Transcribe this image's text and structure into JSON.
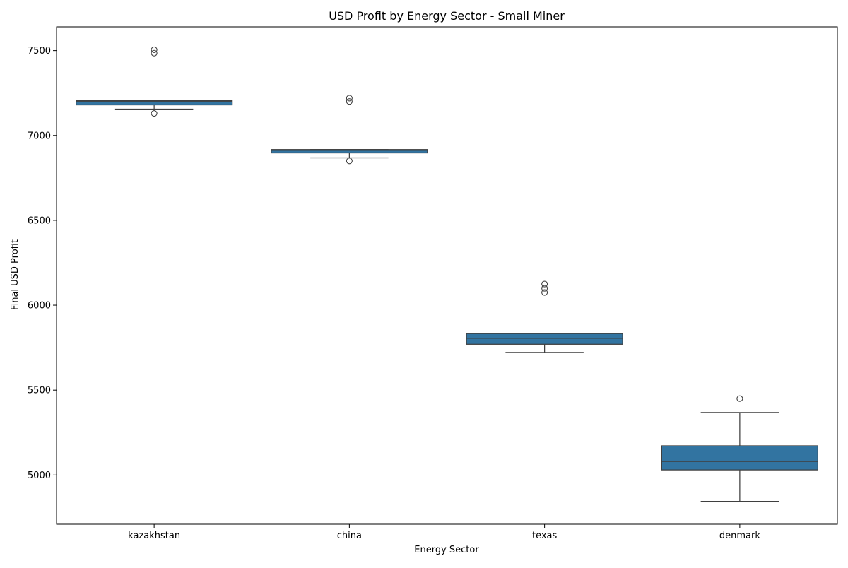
{
  "chart_data": {
    "type": "box",
    "title": "USD Profit by Energy Sector - Small Miner",
    "xlabel": "Energy Sector",
    "ylabel": "Final USD Profit",
    "ylim": [
      4710,
      7640
    ],
    "yticks": [
      5000,
      5500,
      6000,
      6500,
      7000,
      7500
    ],
    "categories": [
      "kazakhstan",
      "china",
      "texas",
      "denmark"
    ],
    "box_color": "#3274a1",
    "line_color": "#3f3f3f",
    "grid": false,
    "boxes": [
      {
        "category": "kazakhstan",
        "whisker_low": 7155,
        "q1": 7180,
        "median": 7200,
        "q3": 7205,
        "whisker_high": 7205,
        "outliers": [
          7130,
          7485,
          7505
        ]
      },
      {
        "category": "china",
        "whisker_low": 6868,
        "q1": 6897,
        "median": 6912,
        "q3": 6917,
        "whisker_high": 6917,
        "outliers": [
          6850,
          7200,
          7220
        ]
      },
      {
        "category": "texas",
        "whisker_low": 5722,
        "q1": 5770,
        "median": 5805,
        "q3": 5833,
        "whisker_high": 5833,
        "outliers": [
          6075,
          6100,
          6125
        ]
      },
      {
        "category": "denmark",
        "whisker_low": 4845,
        "q1": 5030,
        "median": 5080,
        "q3": 5172,
        "whisker_high": 5368,
        "outliers": [
          5450
        ]
      }
    ]
  }
}
